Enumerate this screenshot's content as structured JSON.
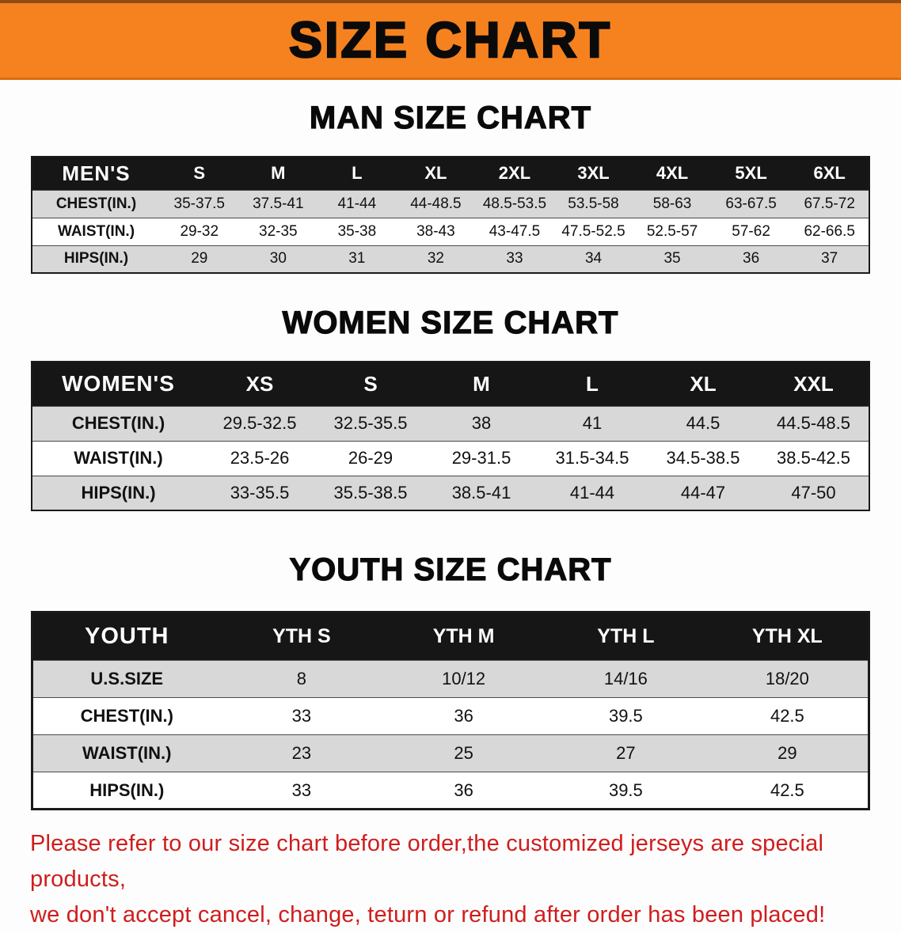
{
  "colors": {
    "banner_bg": "#f5821f",
    "header_bg": "#161616",
    "row_alt_bg": "#d8d8d8",
    "note_color": "#cf1d1d"
  },
  "banner": {
    "title": "SIZE CHART"
  },
  "man_chart": {
    "heading": "MAN SIZE CHART",
    "header": [
      "MEN'S",
      "S",
      "M",
      "L",
      "XL",
      "2XL",
      "3XL",
      "4XL",
      "5XL",
      "6XL"
    ],
    "rows": [
      [
        "CHEST(IN.)",
        "35-37.5",
        "37.5-41",
        "41-44",
        "44-48.5",
        "48.5-53.5",
        "53.5-58",
        "58-63",
        "63-67.5",
        "67.5-72"
      ],
      [
        "WAIST(IN.)",
        "29-32",
        "32-35",
        "35-38",
        "38-43",
        "43-47.5",
        "47.5-52.5",
        "52.5-57",
        "57-62",
        "62-66.5"
      ],
      [
        "HIPS(IN.)",
        "29",
        "30",
        "31",
        "32",
        "33",
        "34",
        "35",
        "36",
        "37"
      ]
    ]
  },
  "women_chart": {
    "heading": "WOMEN SIZE CHART",
    "header": [
      "WOMEN'S",
      "XS",
      "S",
      "M",
      "L",
      "XL",
      "XXL"
    ],
    "rows": [
      [
        "CHEST(IN.)",
        "29.5-32.5",
        "32.5-35.5",
        "38",
        "41",
        "44.5",
        "44.5-48.5"
      ],
      [
        "WAIST(IN.)",
        "23.5-26",
        "26-29",
        "29-31.5",
        "31.5-34.5",
        "34.5-38.5",
        "38.5-42.5"
      ],
      [
        "HIPS(IN.)",
        "33-35.5",
        "35.5-38.5",
        "38.5-41",
        "41-44",
        "44-47",
        "47-50"
      ]
    ]
  },
  "youth_chart": {
    "heading": "YOUTH SIZE CHART",
    "header": [
      "YOUTH",
      "YTH S",
      "YTH M",
      "YTH L",
      "YTH XL"
    ],
    "rows": [
      [
        "U.S.SIZE",
        "8",
        "10/12",
        "14/16",
        "18/20"
      ],
      [
        "CHEST(IN.)",
        "33",
        "36",
        "39.5",
        "42.5"
      ],
      [
        "WAIST(IN.)",
        "23",
        "25",
        "27",
        "29"
      ],
      [
        "HIPS(IN.)",
        "33",
        "36",
        "39.5",
        "42.5"
      ]
    ]
  },
  "note": {
    "line1": "Please refer to our size chart before order,the customized jerseys are special products,",
    "line2": "we don't accept cancel, change, teturn or refund after order has been placed!"
  }
}
